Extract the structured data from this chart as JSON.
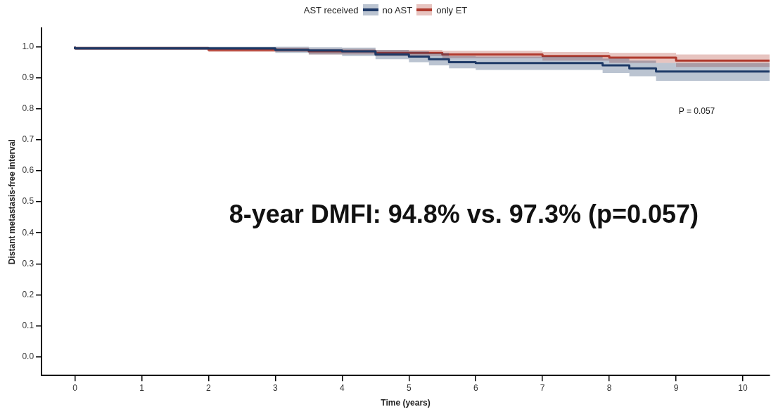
{
  "chart_data": {
    "type": "step",
    "xlabel": "Time (years)",
    "ylabel": "Distant metastasis-free interval",
    "legend_title": "AST received",
    "legend": "top",
    "xlim": [
      -0.5,
      10.4
    ],
    "xticks": [
      0,
      1,
      2,
      3,
      4,
      5,
      6,
      7,
      8,
      9,
      10
    ],
    "ylim": [
      -0.06,
      1.06
    ],
    "yticks": [
      {
        "value": 0,
        "label": "0.0"
      },
      {
        "value": 0.1,
        "label": "0.1"
      },
      {
        "value": 0.2,
        "label": "0.2"
      },
      {
        "value": 0.3,
        "label": "0.3"
      },
      {
        "value": 0.4,
        "label": "0.4"
      },
      {
        "value": 0.5,
        "label": "0.5"
      },
      {
        "value": 0.6,
        "label": "0.6"
      },
      {
        "value": 0.7,
        "label": "0.7"
      },
      {
        "value": 0.8,
        "label": "0.8"
      },
      {
        "value": 0.9,
        "label": "0.9"
      },
      {
        "value": 1,
        "label": "1.0"
      }
    ],
    "grid": false,
    "marker": "none",
    "line_style": "solid",
    "series": [
      {
        "name": "no AST",
        "color": "#1f3a68",
        "x": [
          0,
          3,
          3.5,
          4,
          4.5,
          5,
          5.3,
          5.6,
          6,
          7.9,
          8.3,
          8.7,
          9.7,
          10.4
        ],
        "values": [
          1.0,
          0.995,
          0.99,
          0.988,
          0.985,
          0.975,
          0.968,
          0.96,
          0.95,
          0.947,
          0.94,
          0.93,
          0.92,
          0.92
        ],
        "lower": [
          1.0,
          0.99,
          0.98,
          0.975,
          0.97,
          0.96,
          0.95,
          0.94,
          0.93,
          0.925,
          0.915,
          0.905,
          0.89,
          0.89
        ],
        "upper": [
          1.0,
          1.0,
          1.0,
          0.998,
          0.997,
          0.99,
          0.985,
          0.98,
          0.97,
          0.968,
          0.962,
          0.955,
          0.948,
          0.948
        ]
      },
      {
        "name": "only ET",
        "color": "#b03a2e",
        "x": [
          0,
          2,
          3.5,
          4.5,
          5.5,
          7,
          8,
          9,
          9.7,
          10.4
        ],
        "values": [
          1.0,
          0.995,
          0.99,
          0.985,
          0.98,
          0.975,
          0.97,
          0.965,
          0.955,
          0.955
        ],
        "lower": [
          1.0,
          0.99,
          0.983,
          0.975,
          0.97,
          0.963,
          0.955,
          0.948,
          0.935,
          0.935
        ],
        "upper": [
          1.0,
          1.0,
          0.997,
          0.993,
          0.99,
          0.987,
          0.983,
          0.98,
          0.975,
          0.975
        ]
      }
    ],
    "annotations": [
      "P = 0.057",
      "8-year DMFI: 94.8% vs. 97.3% (p=0.057)"
    ]
  }
}
